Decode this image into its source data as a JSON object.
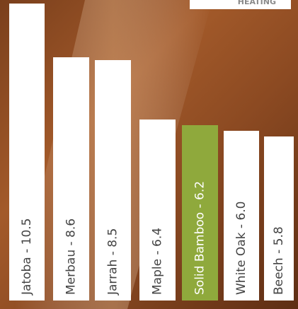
{
  "chart_data": {
    "type": "bar",
    "annotations": [
      "HEATING"
    ],
    "categories": [
      "Jatoba - 10.5",
      "Merbau - 8.6",
      "Jarrah - 8.5",
      "Maple - 6.4",
      "Solid Bamboo - 6.2",
      "White Oak - 6.0",
      "Beech - 5.8"
    ],
    "values": [
      10.5,
      8.6,
      8.5,
      6.4,
      6.2,
      6.0,
      5.8
    ],
    "colors": [
      "#ffffff",
      "#ffffff",
      "#ffffff",
      "#ffffff",
      "#8fa93c",
      "#ffffff",
      "#ffffff"
    ],
    "label_colors": [
      "#444444",
      "#444444",
      "#444444",
      "#444444",
      "#ffffff",
      "#444444",
      "#444444"
    ]
  }
}
